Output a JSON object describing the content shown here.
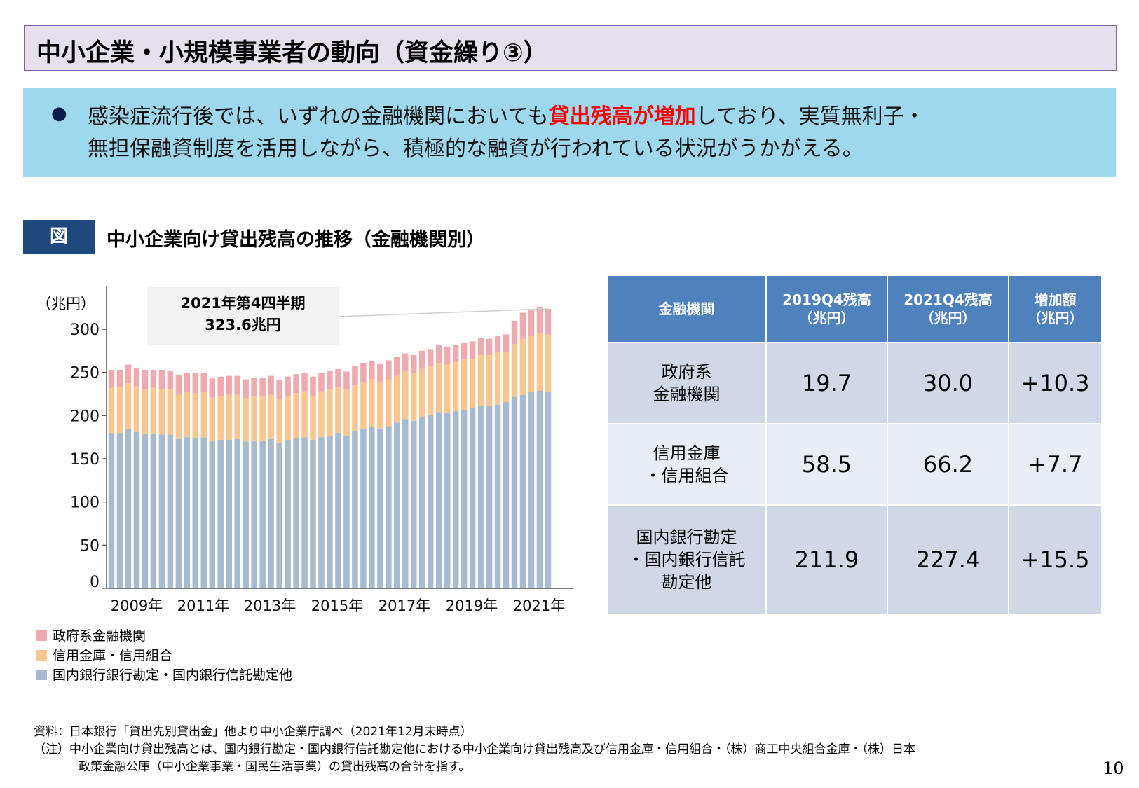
{
  "header": {
    "title": "中小企業・小規模事業者の動向（資金繰り③）"
  },
  "summary": {
    "line1_pre": "感染症流行後では、いずれの金融機関においても",
    "line1_highlight": "貸出残高が増加",
    "line1_post": "しており、実質無利子・",
    "line2": "無担保融資制度を活用しながら、積極的な融資が行われている状況がうかがえる。",
    "highlight_color": "#ff0000"
  },
  "figure": {
    "label": "図",
    "title": "中小企業向け貸出残高の推移（金融機関別）"
  },
  "chart_data": {
    "type": "bar",
    "stacked": true,
    "ylabel": "（兆円）",
    "ylim": [
      0,
      340
    ],
    "yticks": [
      0,
      50,
      100,
      150,
      200,
      250,
      300
    ],
    "xtick_labels": [
      "2009年",
      "2011年",
      "2013年",
      "2015年",
      "2017年",
      "2019年",
      "2021年"
    ],
    "periods": "2008Q4–2021Q4 (quarterly)",
    "annotation": {
      "line1": "2021年第4四半期",
      "line2": "323.6兆円"
    },
    "grid": false,
    "legend_position": "bottom-left",
    "series": [
      {
        "name": "国内銀行銀行勘定・国内銀行信託勘定他",
        "color": "#a6bad2",
        "values": [
          180,
          180,
          185,
          181,
          179,
          179,
          178,
          178,
          173,
          175,
          174,
          175,
          171,
          172,
          172,
          173,
          170,
          171,
          171,
          173,
          168,
          172,
          174,
          175,
          172,
          175,
          177,
          180,
          177,
          182,
          185,
          187,
          185,
          188,
          192,
          196,
          194,
          198,
          201,
          204,
          203,
          205,
          207,
          209,
          211.9,
          211,
          213,
          216,
          222,
          224,
          227,
          229,
          227.4
        ]
      },
      {
        "name": "信用金庫・信用組合",
        "color": "#f9c690",
        "values": [
          52,
          53,
          52.5,
          53,
          51,
          53,
          53,
          53,
          51,
          52,
          52,
          52,
          50,
          51,
          52,
          51,
          50,
          51,
          51,
          51,
          51,
          51,
          52,
          53,
          51,
          53,
          53,
          53,
          53,
          54,
          53,
          55,
          53,
          54,
          54,
          55,
          55,
          56,
          56,
          57,
          56,
          57,
          58,
          57,
          58.5,
          59,
          60,
          58,
          61,
          65,
          65,
          66,
          66.2
        ]
      },
      {
        "name": "政府系金融機関",
        "color": "#eeaaaf",
        "values": [
          21,
          20,
          21.5,
          21,
          23,
          21,
          22,
          21,
          23,
          22,
          23,
          22,
          22,
          22,
          22,
          22,
          22,
          22,
          22,
          22,
          22,
          22,
          22,
          21,
          22,
          21,
          22,
          21,
          21,
          21,
          23,
          21,
          22,
          22,
          22,
          21,
          21,
          21,
          20,
          21,
          21,
          20,
          19,
          20,
          19.7,
          19,
          19,
          20,
          27,
          30,
          30,
          30,
          30.0
        ]
      }
    ]
  },
  "legend": [
    {
      "label": "政府系金融機関",
      "color": "#eeaaaf"
    },
    {
      "label": "信用金庫・信用組合",
      "color": "#f9c690"
    },
    {
      "label": "国内銀行銀行勘定・国内銀行信託勘定他",
      "color": "#a6bad2"
    }
  ],
  "table": {
    "headers": [
      {
        "line1": "金融機関",
        "line2": ""
      },
      {
        "line1": "2019Q4残高",
        "line2": "（兆円）"
      },
      {
        "line1": "2021Q4残高",
        "line2": "（兆円）"
      },
      {
        "line1": "増加額",
        "line2": "（兆円）"
      }
    ],
    "rows": [
      {
        "name": [
          "政府系",
          "金融機関"
        ],
        "v2019": "19.7",
        "v2021": "30.0",
        "diff": "+10.3"
      },
      {
        "name": [
          "信用金庫",
          "・信用組合"
        ],
        "v2019": "58.5",
        "v2021": "66.2",
        "diff": "+7.7"
      },
      {
        "name": [
          "国内銀行勘定",
          "・国内銀行信託",
          "勘定他"
        ],
        "v2019": "211.9",
        "v2021": "227.4",
        "diff": "+15.5"
      }
    ]
  },
  "footnotes": {
    "source": "資料：日本銀行「貸出先別貸出金」他より中小企業庁調べ（2021年12月末時点）",
    "note1": "（注）中小企業向け貸出残高とは、国内銀行勘定・国内銀行信託勘定他における中小企業向け貸出残高及び信用金庫・信用組合・（株）商工中央組合金庫・（株）日本",
    "note2": "政策金融公庫（中小企業事業・国民生活事業）の貸出残高の合計を指す。"
  },
  "page_number": "10"
}
